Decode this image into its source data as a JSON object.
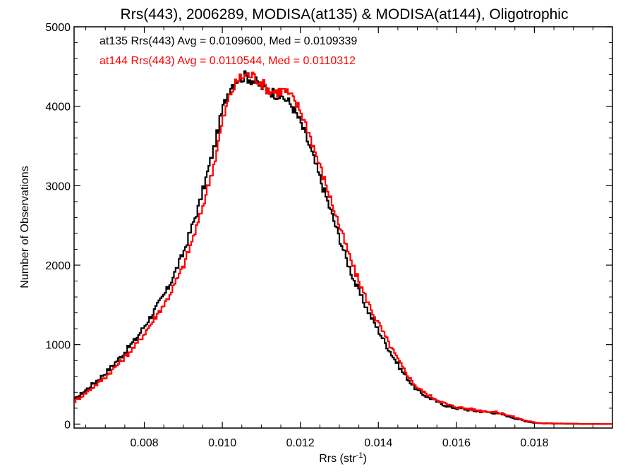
{
  "chart_data": {
    "type": "line",
    "title": "Rrs(443), 2006289, MODISA(at135) & MODISA(at144), Oligotrophic",
    "xlabel_main": "Rrs (str",
    "xlabel_sup": "-1",
    "xlabel_close": ")",
    "ylabel": "Number of Observations",
    "xlim": [
      0.0062,
      0.02
    ],
    "ylim": [
      -50,
      5000
    ],
    "x_ticks": [
      0.008,
      0.01,
      0.012,
      0.014,
      0.016,
      0.018
    ],
    "x_tick_labels": [
      "0.008",
      "0.010",
      "0.012",
      "0.014",
      "0.016",
      "0.018"
    ],
    "y_ticks": [
      0,
      1000,
      2000,
      3000,
      4000,
      5000
    ],
    "y_tick_labels": [
      "0",
      "1000",
      "2000",
      "3000",
      "4000",
      "5000"
    ],
    "legend": {
      "placement": "top-left",
      "entries": [
        "at135 Rrs(443) Avg = 0.0109600, Med = 0.0109339",
        "at144 Rrs(443) Avg = 0.0110544, Med = 0.0110312"
      ]
    },
    "series": [
      {
        "color": "#000000",
        "x": [
          0.0062,
          0.0066,
          0.007,
          0.0074,
          0.0078,
          0.0082,
          0.0086,
          0.009,
          0.0094,
          0.0098,
          0.01,
          0.0102,
          0.0104,
          0.0106,
          0.0108,
          0.011,
          0.0112,
          0.0114,
          0.0116,
          0.0118,
          0.012,
          0.0122,
          0.0124,
          0.0126,
          0.0128,
          0.013,
          0.0132,
          0.0134,
          0.0136,
          0.0138,
          0.014,
          0.0142,
          0.0144,
          0.0146,
          0.0148,
          0.015,
          0.0152,
          0.0154,
          0.0156,
          0.0158,
          0.016,
          0.0162,
          0.0164,
          0.0166,
          0.0168,
          0.017,
          0.0172,
          0.0174,
          0.0176,
          0.0178,
          0.018,
          0.0182,
          0.0186,
          0.019,
          0.0195,
          0.02
        ],
        "y": [
          300,
          470,
          640,
          850,
          1080,
          1380,
          1700,
          2150,
          2750,
          3500,
          3950,
          4250,
          4350,
          4380,
          4320,
          4250,
          4200,
          4150,
          4100,
          4000,
          3800,
          3550,
          3250,
          2950,
          2650,
          2350,
          2050,
          1780,
          1560,
          1360,
          1180,
          1000,
          830,
          670,
          540,
          420,
          360,
          310,
          260,
          220,
          200,
          190,
          170,
          160,
          150,
          140,
          120,
          90,
          60,
          35,
          18,
          10,
          6,
          3,
          1,
          0
        ]
      },
      {
        "color": "#ff0000",
        "x": [
          0.0062,
          0.0066,
          0.007,
          0.0074,
          0.0078,
          0.0082,
          0.0086,
          0.009,
          0.0094,
          0.0098,
          0.01,
          0.0102,
          0.0104,
          0.0106,
          0.0108,
          0.011,
          0.0112,
          0.0114,
          0.0116,
          0.0118,
          0.012,
          0.0122,
          0.0124,
          0.0126,
          0.0128,
          0.013,
          0.0132,
          0.0134,
          0.0136,
          0.0138,
          0.014,
          0.0142,
          0.0144,
          0.0146,
          0.0148,
          0.015,
          0.0152,
          0.0154,
          0.0156,
          0.0158,
          0.016,
          0.0162,
          0.0164,
          0.0166,
          0.0168,
          0.017,
          0.0172,
          0.0174,
          0.0176,
          0.0178,
          0.018,
          0.0182,
          0.0186,
          0.019,
          0.0195,
          0.02
        ],
        "y": [
          280,
          430,
          590,
          790,
          1000,
          1280,
          1580,
          1980,
          2560,
          3300,
          3800,
          4150,
          4330,
          4400,
          4380,
          4300,
          4200,
          4180,
          4200,
          4100,
          3950,
          3700,
          3400,
          3100,
          2800,
          2500,
          2200,
          1920,
          1680,
          1460,
          1270,
          1080,
          900,
          730,
          580,
          460,
          390,
          330,
          280,
          240,
          215,
          200,
          185,
          170,
          160,
          150,
          130,
          100,
          70,
          40,
          20,
          12,
          6,
          3,
          1,
          0
        ]
      }
    ]
  }
}
